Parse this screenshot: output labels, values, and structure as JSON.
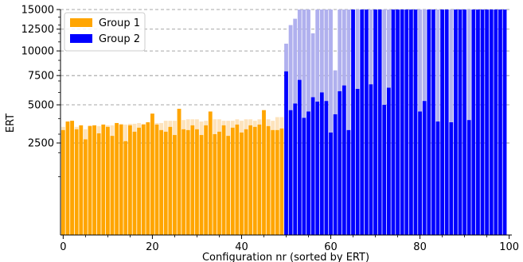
{
  "chart_data": {
    "type": "bar",
    "xlabel": "Configuration nr (sorted by ERT)",
    "ylabel": "ERT",
    "xlim": [
      -0.6,
      100.6
    ],
    "ylim": [
      0,
      15000
    ],
    "y_scale": "sqrt",
    "x_ticks": [
      0,
      20,
      40,
      60,
      80,
      100
    ],
    "y_ticks": [
      2500,
      5000,
      7500,
      10000,
      12500,
      15000
    ],
    "y_tick_labels": [
      "2500",
      "5000",
      "7500",
      "10000",
      "12500",
      "15000"
    ],
    "grid": "horizontal dashed",
    "legend": {
      "placement": "top-left",
      "entries": [
        {
          "label": "Group 1",
          "color": "#ffa500"
        },
        {
          "label": "Group 2",
          "color": "#0000ff"
        }
      ]
    },
    "series": [
      {
        "name": "Group 1",
        "color": "#ffa500",
        "light_color": "#fde3bc",
        "x_start": 0,
        "values": [
          3250,
          3800,
          3850,
          3300,
          3550,
          2700,
          3500,
          3550,
          3050,
          3600,
          3450,
          2900,
          3700,
          3600,
          2600,
          3550,
          3150,
          3400,
          3600,
          3750,
          4350,
          3600,
          3250,
          3150,
          3450,
          2950,
          4700,
          3300,
          3250,
          3550,
          3300,
          2950,
          3550,
          4500,
          3000,
          3150,
          3550,
          2900,
          3400,
          3600,
          3100,
          3300,
          3550,
          3450,
          3600,
          4600,
          3500,
          3250,
          3250,
          3350
        ],
        "upper": [
          3450,
          3800,
          3850,
          3450,
          3550,
          3300,
          3550,
          3550,
          3500,
          3600,
          3550,
          3550,
          3700,
          3650,
          3600,
          3650,
          3650,
          3700,
          3650,
          3750,
          4350,
          3700,
          3700,
          3850,
          3850,
          3850,
          4700,
          3900,
          3950,
          3950,
          3950,
          3800,
          3850,
          4500,
          3950,
          3950,
          3850,
          3850,
          3850,
          3950,
          3850,
          3950,
          3950,
          3850,
          3950,
          4600,
          3950,
          3850,
          4100,
          4100
        ]
      },
      {
        "name": "Group 2",
        "color": "#0000ff",
        "light_color": "#b0b0ee",
        "x_start": 50,
        "values": [
          7900,
          4600,
          5100,
          7100,
          4050,
          4500,
          5600,
          5250,
          6000,
          5300,
          3100,
          4300,
          6100,
          6600,
          3250,
          15000,
          6300,
          15000,
          15000,
          6700,
          15000,
          15000,
          5000,
          6400,
          15000,
          15000,
          15000,
          15000,
          15000,
          15000,
          4500,
          5300,
          15000,
          15000,
          3800,
          15000,
          15000,
          3750,
          15000,
          15000,
          15000,
          3900,
          15000,
          15000,
          15000,
          15000,
          15000,
          15000,
          15000,
          15000
        ],
        "upper": [
          10800,
          13000,
          13800,
          15000,
          15000,
          15000,
          12000,
          15000,
          15000,
          15000,
          15000,
          8000,
          15000,
          15000,
          15000,
          15000,
          15000,
          15000,
          15000,
          15000,
          15000,
          15000,
          15000,
          15000,
          15000,
          15000,
          15000,
          15000,
          15000,
          15000,
          15000,
          15000,
          15000,
          15000,
          15000,
          15000,
          15000,
          15000,
          15000,
          15000,
          15000,
          15000,
          15000,
          15000,
          15000,
          15000,
          15000,
          15000,
          15000,
          15000
        ]
      }
    ]
  }
}
